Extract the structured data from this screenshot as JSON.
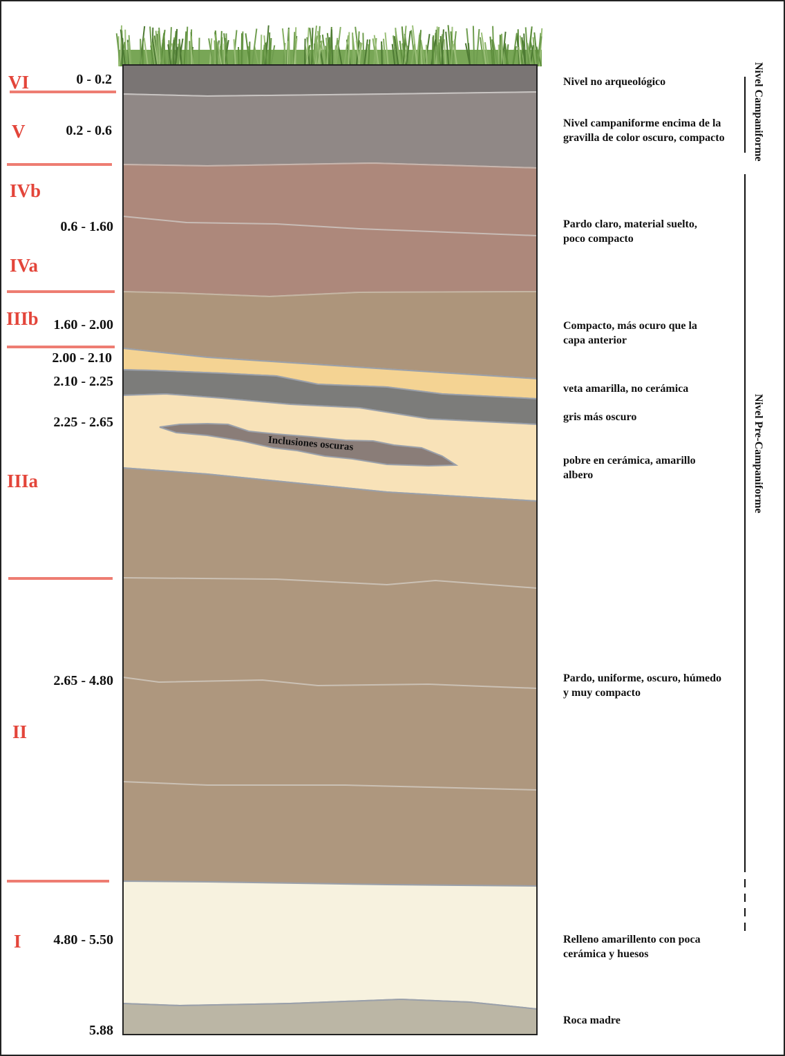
{
  "levels": [
    {
      "name": "VI"
    },
    {
      "name": "V"
    },
    {
      "name": "IVb"
    },
    {
      "name": "IVa"
    },
    {
      "name": "IIIb"
    },
    {
      "name": "IIIa"
    },
    {
      "name": "II"
    },
    {
      "name": "I"
    }
  ],
  "depths": [
    {
      "label": "0 - 0.2"
    },
    {
      "label": "0.2 - 0.6"
    },
    {
      "label": "0.6 - 1.60"
    },
    {
      "label": "1.60 - 2.00"
    },
    {
      "label": "2.00 - 2.10"
    },
    {
      "label": "2.10 - 2.25"
    },
    {
      "label": "2.25 - 2.65"
    },
    {
      "label": "2.65 - 4.80"
    },
    {
      "label": "4.80 - 5.50"
    },
    {
      "label": "5.88"
    }
  ],
  "descriptions": [
    {
      "lines": [
        "Nivel no arqueológico"
      ]
    },
    {
      "lines": [
        "Nivel campaniforme encima de la",
        "gravilla de color oscuro, compacto"
      ]
    },
    {
      "lines": [
        "Pardo claro, material suelto,",
        "poco compacto"
      ]
    },
    {
      "lines": [
        "Compacto, más ocuro que la",
        "capa anterior"
      ]
    },
    {
      "lines": [
        "veta amarilla, no cerámica"
      ]
    },
    {
      "lines": [
        "gris más oscuro"
      ]
    },
    {
      "lines": [
        "pobre en cerámica, amarillo",
        "albero"
      ]
    },
    {
      "lines": [
        "Pardo, uniforme, oscuro, húmedo",
        "y muy compacto"
      ]
    },
    {
      "lines": [
        "Relleno amarillento con poca",
        "cerámica y huesos"
      ]
    },
    {
      "lines": [
        "Roca madre"
      ]
    }
  ],
  "inclusion_label": "Inclusiones oscuras",
  "periods": {
    "campaniforme": "Nivel Campaniforme",
    "pre_campaniforme": "Nivel Pre-Campaniforme"
  },
  "colors": {
    "level_label": "#e3453a",
    "level_rule": "#ee7d72",
    "layer_vi": "#7a7574",
    "layer_v": "#908886",
    "layer_iv": "#ad887b",
    "layer_iiib": "#ad957b",
    "yellow_vein": "#f4d393",
    "grey_band": "#7c7c7a",
    "albero": "#f8e2b8",
    "inclusions": "#8a7d78",
    "layer_ii": "#ae977e",
    "layer_i": "#f7f2df",
    "bedrock": "#bbb6a5",
    "grass": "#6b9a4c"
  }
}
